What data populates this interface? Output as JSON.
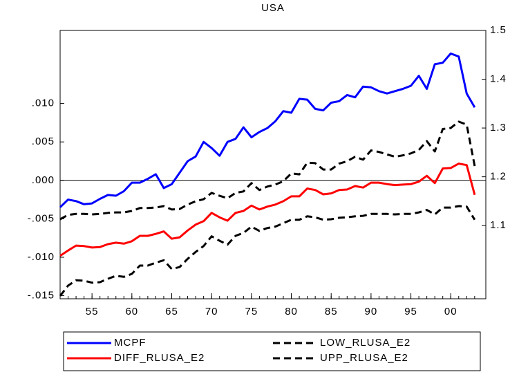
{
  "chart_data": {
    "type": "line",
    "title": "USA",
    "x": [
      1951,
      1952,
      1953,
      1954,
      1955,
      1956,
      1957,
      1958,
      1959,
      1960,
      1961,
      1962,
      1963,
      1964,
      1965,
      1966,
      1967,
      1968,
      1969,
      1970,
      1971,
      1972,
      1973,
      1974,
      1975,
      1976,
      1977,
      1978,
      1979,
      1980,
      1981,
      1982,
      1983,
      1984,
      1985,
      1986,
      1987,
      1988,
      1989,
      1990,
      1991,
      1992,
      1993,
      1994,
      1995,
      1996,
      1997,
      1998,
      1999,
      2000,
      2001,
      2002,
      2003
    ],
    "xlim": [
      1951,
      2004.4
    ],
    "xticks": [
      {
        "value": 1955,
        "label": "55"
      },
      {
        "value": 1960,
        "label": "60"
      },
      {
        "value": 1965,
        "label": "65"
      },
      {
        "value": 1970,
        "label": "70"
      },
      {
        "value": 1975,
        "label": "75"
      },
      {
        "value": 1980,
        "label": "80"
      },
      {
        "value": 1985,
        "label": "85"
      },
      {
        "value": 1990,
        "label": "90"
      },
      {
        "value": 1995,
        "label": "95"
      },
      {
        "value": 2000,
        "label": "00"
      }
    ],
    "ylim": [
      -0.0154,
      0.0195
    ],
    "yticks": [
      {
        "value": -0.015,
        "label": "-.015"
      },
      {
        "value": -0.01,
        "label": "-.010"
      },
      {
        "value": -0.005,
        "label": "-.005"
      },
      {
        "value": 0,
        "label": ".000"
      },
      {
        "value": 0.005,
        "label": ".005"
      },
      {
        "value": 0.01,
        "label": ".010"
      }
    ],
    "y2lim": [
      0.95,
      1.5
    ],
    "y2ticks": [
      1.1,
      1.2,
      1.3,
      1.4,
      1.5
    ],
    "series": [
      {
        "name": "MCPF",
        "color": "#0000ff",
        "style": "solid",
        "axis": "y",
        "values": [
          -0.0035,
          -0.0025,
          -0.0027,
          -0.0031,
          -0.003,
          -0.0024,
          -0.0019,
          -0.002,
          -0.0014,
          -0.0003,
          -0.0003,
          0.0002,
          0.0008,
          -0.001,
          -0.0005,
          0.001,
          0.0025,
          0.0031,
          0.005,
          0.0042,
          0.0032,
          0.005,
          0.0054,
          0.0069,
          0.0056,
          0.0063,
          0.0068,
          0.0077,
          0.009,
          0.0088,
          0.0106,
          0.0105,
          0.0093,
          0.0091,
          0.0101,
          0.0103,
          0.0111,
          0.0108,
          0.0122,
          0.0121,
          0.0116,
          0.0113,
          0.0116,
          0.0119,
          0.0123,
          0.0136,
          0.0119,
          0.0151,
          0.0153,
          0.0165,
          0.0161,
          0.0113,
          0.0095
        ]
      },
      {
        "name": "DIFF_RLUSA_E2",
        "color": "#ff0000",
        "style": "solid",
        "axis": "y2",
        "values": [
          1.038,
          1.049,
          1.059,
          1.058,
          1.055,
          1.056,
          1.062,
          1.065,
          1.063,
          1.068,
          1.079,
          1.079,
          1.083,
          1.088,
          1.073,
          1.076,
          1.09,
          1.102,
          1.109,
          1.126,
          1.117,
          1.11,
          1.126,
          1.13,
          1.141,
          1.133,
          1.139,
          1.143,
          1.15,
          1.16,
          1.16,
          1.176,
          1.173,
          1.164,
          1.166,
          1.173,
          1.174,
          1.181,
          1.178,
          1.188,
          1.188,
          1.185,
          1.183,
          1.184,
          1.185,
          1.19,
          1.202,
          1.187,
          1.217,
          1.218,
          1.227,
          1.224,
          1.163
        ]
      },
      {
        "name": "LOW_RLUSA_E2",
        "color": "#000000",
        "style": "dashed",
        "axis": "y2",
        "values": [
          0.956,
          0.977,
          0.988,
          0.987,
          0.983,
          0.984,
          0.991,
          0.997,
          0.995,
          1.001,
          1.018,
          1.018,
          1.024,
          1.029,
          1.011,
          1.015,
          1.032,
          1.046,
          1.058,
          1.078,
          1.069,
          1.061,
          1.079,
          1.085,
          1.098,
          1.089,
          1.095,
          1.098,
          1.105,
          1.112,
          1.112,
          1.119,
          1.117,
          1.112,
          1.113,
          1.116,
          1.117,
          1.119,
          1.12,
          1.124,
          1.124,
          1.124,
          1.123,
          1.124,
          1.124,
          1.127,
          1.132,
          1.123,
          1.137,
          1.137,
          1.14,
          1.139,
          1.112
        ]
      },
      {
        "name": "UPP_RLUSA_E2",
        "color": "#000000",
        "style": "dashed",
        "axis": "y2",
        "values": [
          1.113,
          1.122,
          1.124,
          1.124,
          1.123,
          1.124,
          1.126,
          1.127,
          1.127,
          1.13,
          1.136,
          1.136,
          1.137,
          1.14,
          1.133,
          1.134,
          1.143,
          1.15,
          1.154,
          1.167,
          1.161,
          1.156,
          1.167,
          1.17,
          1.187,
          1.173,
          1.18,
          1.184,
          1.191,
          1.207,
          1.205,
          1.229,
          1.228,
          1.215,
          1.215,
          1.227,
          1.232,
          1.241,
          1.235,
          1.254,
          1.251,
          1.246,
          1.241,
          1.244,
          1.248,
          1.255,
          1.273,
          1.252,
          1.298,
          1.3,
          1.313,
          1.307,
          1.222
        ]
      }
    ],
    "zero_line": true,
    "legend": "bottom"
  }
}
